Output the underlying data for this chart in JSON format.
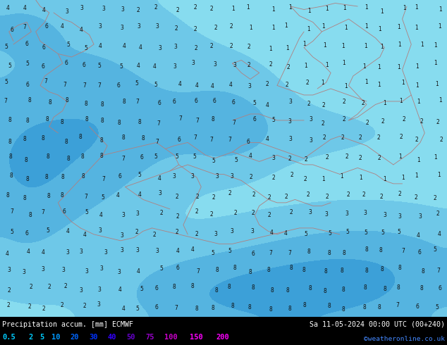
{
  "title_left": "Precipitation accum. [mm] ECMWF",
  "title_right": "Sa 11-05-2024 00:00 UTC (00+240)",
  "credit": "©weatheronline.co.uk",
  "legend_labels": [
    "0.5",
    "2",
    "5",
    "10",
    "20",
    "30",
    "40",
    "50",
    "75",
    "100",
    "150",
    "200"
  ],
  "legend_text_colors": [
    "#00ccff",
    "#00ccff",
    "#00ccff",
    "#0099ff",
    "#0066ff",
    "#0033ff",
    "#3300ff",
    "#6600cc",
    "#9900cc",
    "#cc00cc",
    "#ff00ff",
    "#ff00ff"
  ],
  "bg_color": "#000000",
  "map_bg": "#87DCEF",
  "border_color": "#b08080",
  "number_color": "#111111",
  "fill_colors": [
    "#87DCEF",
    "#6EC8E8",
    "#55B4E0",
    "#3CA0D8",
    "#238CD0",
    "#1A78B8",
    "#1264A0",
    "#0A5088",
    "#083C70",
    "#4B0080",
    "#800080",
    "#CC00CC"
  ],
  "contour_levels": [
    0.5,
    2,
    5,
    10,
    20,
    30,
    40,
    50,
    75,
    100,
    150,
    200
  ],
  "fig_width": 6.34,
  "fig_height": 4.9
}
